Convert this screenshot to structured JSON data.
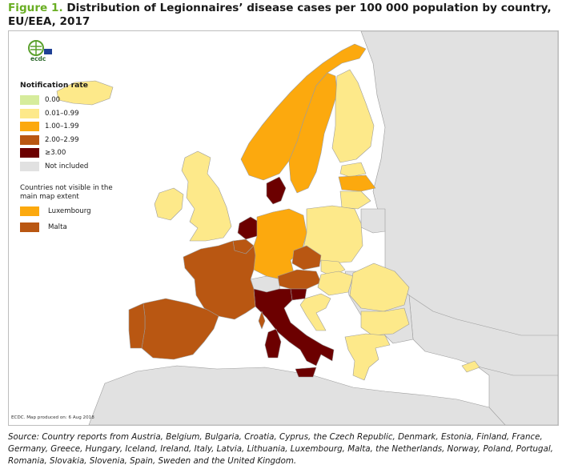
{
  "title": {
    "figure_label": "Figure 1.",
    "text": "Distribution of Legionnaires’ disease cases per 100 000 population by country, EU/EEA, 2017"
  },
  "logo": {
    "label": "ecdc"
  },
  "legend": {
    "title": "Notification rate",
    "items": [
      {
        "label": "0.00",
        "color": "#d6ec9c"
      },
      {
        "label": "0.01–0.99",
        "color": "#fde98a"
      },
      {
        "label": "1.00–1.99",
        "color": "#fca90e"
      },
      {
        "label": "2.00–2.99",
        "color": "#b95712"
      },
      {
        "label": "≥3.00",
        "color": "#6c0000"
      },
      {
        "label": "Not included",
        "color": "#e1e1e1"
      }
    ],
    "not_visible_title": "Countries not visible in the main map extent",
    "not_visible": [
      {
        "label": "Luxembourg",
        "color": "#fca90e"
      },
      {
        "label": "Malta",
        "color": "#b95712"
      }
    ]
  },
  "map": {
    "produced": "ECDC. Map produced on: 6 Aug 2018",
    "sea_color": "#ffffff",
    "border_color": "#9c9c9c",
    "countries": [
      {
        "name": "Iceland",
        "category": "0.01–0.99"
      },
      {
        "name": "Ireland",
        "category": "0.01–0.99"
      },
      {
        "name": "United Kingdom",
        "category": "0.01–0.99"
      },
      {
        "name": "Norway",
        "category": "1.00–1.99"
      },
      {
        "name": "Sweden",
        "category": "1.00–1.99"
      },
      {
        "name": "Finland",
        "category": "0.01–0.99"
      },
      {
        "name": "Estonia",
        "category": "0.01–0.99"
      },
      {
        "name": "Latvia",
        "category": "1.00–1.99"
      },
      {
        "name": "Lithuania",
        "category": "0.01–0.99"
      },
      {
        "name": "Denmark",
        "category": "≥3.00"
      },
      {
        "name": "Netherlands",
        "category": "≥3.00"
      },
      {
        "name": "Belgium",
        "category": "2.00–2.99"
      },
      {
        "name": "Germany",
        "category": "1.00–1.99"
      },
      {
        "name": "Poland",
        "category": "0.01–0.99"
      },
      {
        "name": "Czech Republic",
        "category": "2.00–2.99"
      },
      {
        "name": "Slovakia",
        "category": "0.01–0.99"
      },
      {
        "name": "Austria",
        "category": "2.00–2.99"
      },
      {
        "name": "Hungary",
        "category": "0.01–0.99"
      },
      {
        "name": "Slovenia",
        "category": "≥3.00"
      },
      {
        "name": "Croatia",
        "category": "0.01–0.99"
      },
      {
        "name": "Romania",
        "category": "0.01–0.99"
      },
      {
        "name": "Bulgaria",
        "category": "0.01–0.99"
      },
      {
        "name": "Greece",
        "category": "0.01–0.99"
      },
      {
        "name": "Cyprus",
        "category": "0.01–0.99"
      },
      {
        "name": "Italy",
        "category": "≥3.00"
      },
      {
        "name": "France",
        "category": "2.00–2.99"
      },
      {
        "name": "Spain",
        "category": "2.00–2.99"
      },
      {
        "name": "Portugal",
        "category": "2.00–2.99"
      },
      {
        "name": "Switzerland",
        "category": "Not included"
      },
      {
        "name": "Non-EU/EEA land",
        "category": "Not included"
      }
    ]
  },
  "source": "Source: Country reports from Austria, Belgium, Bulgaria, Croatia, Cyprus, the Czech Republic, Denmark, Estonia, Finland, France, Germany, Greece, Hungary, Iceland, Ireland, Italy, Latvia, Lithuania, Luxembourg, Malta, the Netherlands, Norway, Poland, Portugal, Romania, Slovakia, Slovenia, Spain, Sweden and the United Kingdom."
}
